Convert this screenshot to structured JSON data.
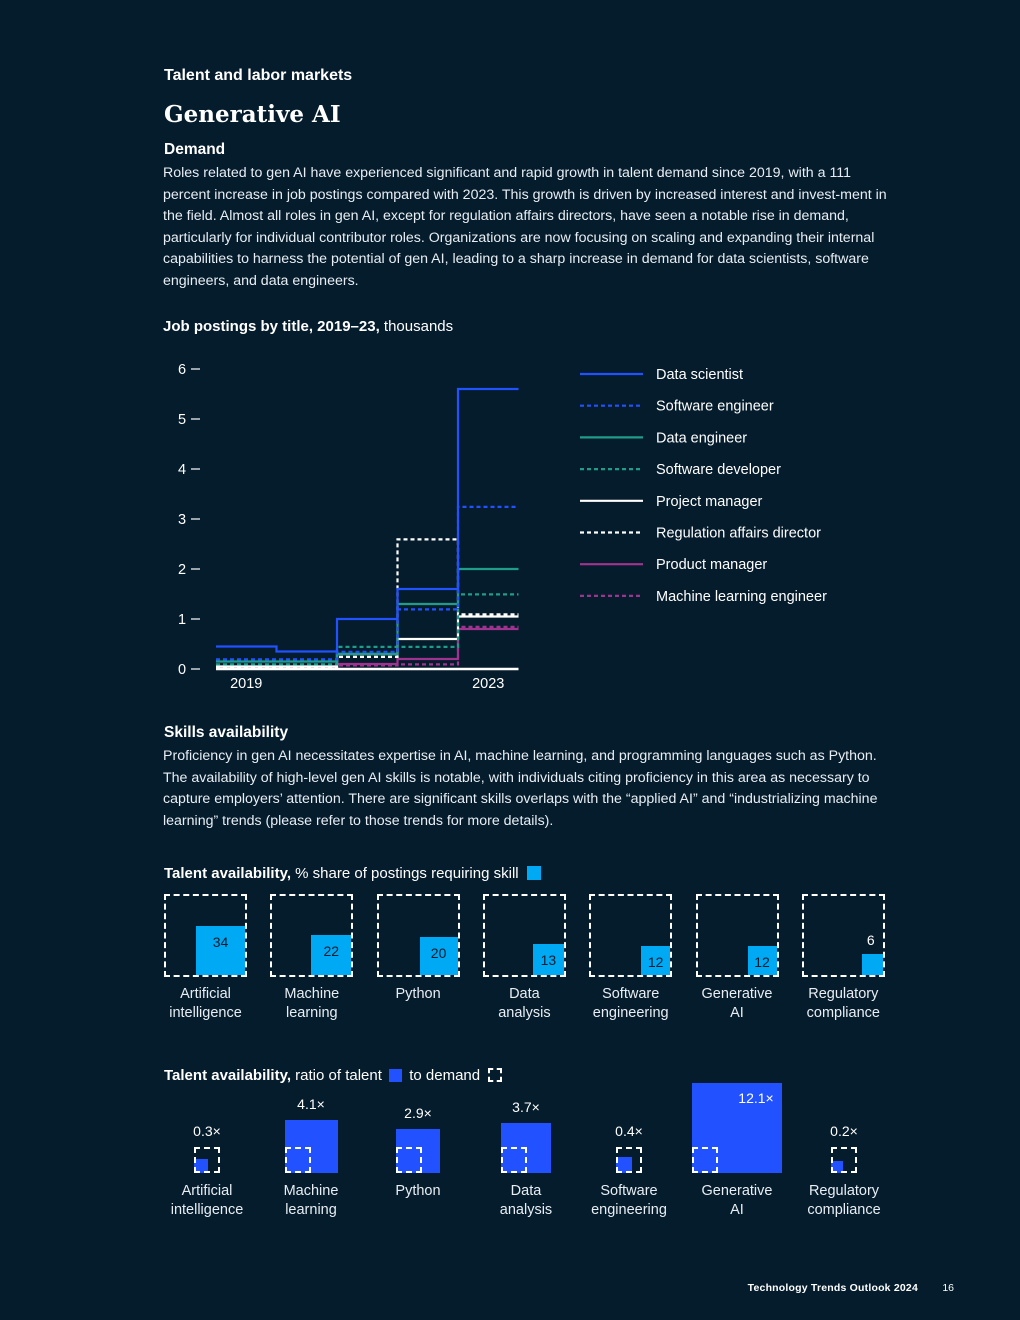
{
  "header": {
    "section": "Talent and labor markets",
    "title": "Generative AI"
  },
  "demand": {
    "heading": "Demand",
    "body": "Roles related to gen AI have experienced significant and rapid growth in talent demand since 2019, with a 111 percent increase in job postings compared with 2023. This growth is driven by increased interest and invest-ment in the field. Almost all roles in gen AI, except for regulation affairs directors, have seen a notable rise in demand, particularly for individual contributor roles. Organizations are now focusing on scaling and expanding their internal capabilities to harness the potential of gen AI, leading to a sharp increase in demand for data scientists, software engineers, and data engineers."
  },
  "job_chart": {
    "title_bold": "Job postings by title, 2019–23,",
    "title_light": "thousands"
  },
  "skills": {
    "heading": "Skills availability",
    "body": "Proficiency in gen AI necessitates expertise in AI, machine learning, and programming languages such as Python. The availability of high-level gen AI skills is notable, with individuals citing proficiency in this area as necessary to capture employers’ attention. There are significant skills overlaps with the “applied AI” and “industrializing machine learning” trends (please refer to those trends for more details)."
  },
  "share_chart": {
    "title_bold": "Talent availability,",
    "title_light": "% share of postings requiring skill"
  },
  "ratio_chart": {
    "title_bold": "Talent availability,",
    "title_light_1": "ratio of talent",
    "title_light_2": "to demand"
  },
  "footer": {
    "publication": "Technology Trends Outlook 2024",
    "page": "16"
  },
  "colors": {
    "background": "#051c2c",
    "blue": "#2251ff",
    "cyan": "#00a9f4",
    "teal": "#1f9c8a",
    "magenta": "#a0338f",
    "white": "#ffffff"
  },
  "chart_data": [
    {
      "type": "line",
      "step": true,
      "title": "Job postings by title, 2019–23, thousands",
      "x": [
        2019,
        2020,
        2021,
        2022,
        2023
      ],
      "x_tick_labels": [
        "2019",
        "2023"
      ],
      "y_ticks": [
        0,
        1,
        2,
        3,
        4,
        5,
        6
      ],
      "ylim": [
        0,
        6
      ],
      "series": [
        {
          "name": "Data scientist",
          "values": [
            0.45,
            0.35,
            1.0,
            1.6,
            5.6
          ],
          "color": "#2251ff",
          "dashed": false
        },
        {
          "name": "Software engineer",
          "values": [
            0.2,
            0.2,
            0.35,
            1.2,
            3.25
          ],
          "color": "#2251ff",
          "dashed": true
        },
        {
          "name": "Data engineer",
          "values": [
            0.15,
            0.15,
            0.3,
            1.3,
            2.0
          ],
          "color": "#1f9c8a",
          "dashed": false
        },
        {
          "name": "Software developer",
          "values": [
            0.1,
            0.1,
            0.45,
            0.45,
            1.5
          ],
          "color": "#1f9c8a",
          "dashed": true
        },
        {
          "name": "Project manager",
          "values": [
            0.05,
            0.05,
            0.3,
            0.6,
            1.05
          ],
          "color": "#ffffff",
          "dashed": false
        },
        {
          "name": "Regulation affairs director",
          "values": [
            0.05,
            0.05,
            0.25,
            2.6,
            1.1
          ],
          "color": "#ffffff",
          "dashed": true
        },
        {
          "name": "Product manager",
          "values": [
            0.02,
            0.02,
            0.1,
            0.2,
            0.8
          ],
          "color": "#a0338f",
          "dashed": false
        },
        {
          "name": "Machine learning engineer",
          "values": [
            0.02,
            0.02,
            0.08,
            0.1,
            0.85
          ],
          "color": "#a0338f",
          "dashed": true
        }
      ]
    },
    {
      "type": "bar",
      "title": "Talent availability, % share of postings requiring skill",
      "categories": [
        "Artificial intelligence",
        "Machine learning",
        "Python",
        "Data analysis",
        "Software engineering",
        "Generative AI",
        "Regulatory compliance"
      ],
      "category_lines": [
        [
          "Artificial",
          "intelligence"
        ],
        [
          "Machine",
          "learning"
        ],
        [
          "Python",
          ""
        ],
        [
          "Data",
          "analysis"
        ],
        [
          "Software",
          "engineering"
        ],
        [
          "Generative",
          "AI"
        ],
        [
          "Regulatory",
          "compliance"
        ]
      ],
      "values": [
        34,
        22,
        20,
        13,
        12,
        12,
        6
      ],
      "value_labels": [
        "34",
        "22",
        "20",
        "13",
        "12",
        "12",
        "6"
      ],
      "unit": "%"
    },
    {
      "type": "bar",
      "title": "Talent availability, ratio of talent to demand",
      "categories": [
        "Artificial intelligence",
        "Machine learning",
        "Python",
        "Data analysis",
        "Software engineering",
        "Generative AI",
        "Regulatory compliance"
      ],
      "category_lines": [
        [
          "Artificial",
          "intelligence"
        ],
        [
          "Machine",
          "learning"
        ],
        [
          "Python",
          ""
        ],
        [
          "Data",
          "analysis"
        ],
        [
          "Software",
          "engineering"
        ],
        [
          "Generative",
          "AI"
        ],
        [
          "Regulatory",
          "compliance"
        ]
      ],
      "values": [
        0.3,
        4.1,
        2.9,
        3.7,
        0.4,
        12.1,
        0.2
      ],
      "value_labels": [
        "0.3×",
        "4.1×",
        "2.9×",
        "3.7×",
        "0.4×",
        "12.1×",
        "0.2×"
      ]
    }
  ]
}
